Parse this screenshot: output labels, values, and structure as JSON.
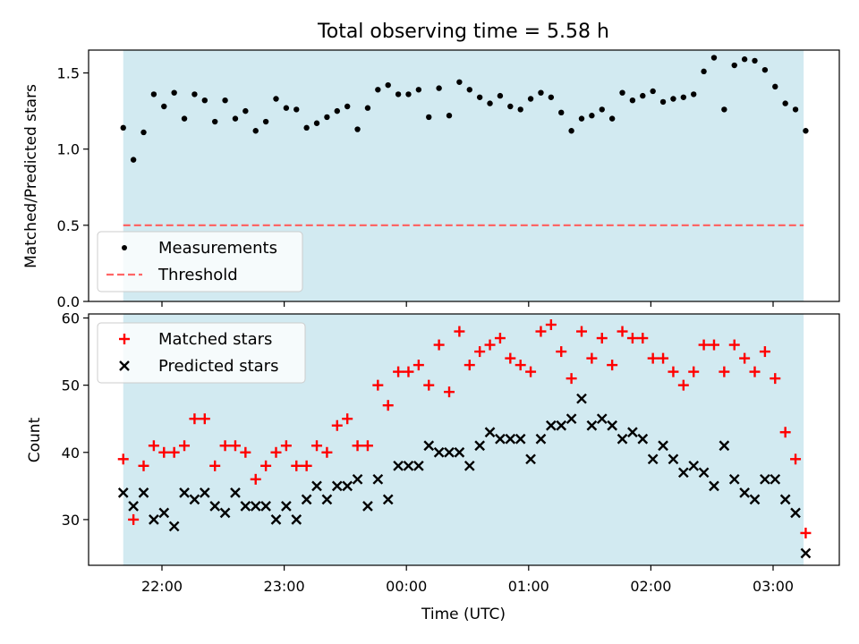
{
  "chart_data": [
    {
      "type": "scatter",
      "title": "Total observing time = 5.58 h",
      "ylabel": "Matched/Predicted stars",
      "xlabel": "",
      "ylim": [
        0.0,
        1.65
      ],
      "yticks": [
        "0.0",
        "0.5",
        "1.0",
        "1.5"
      ],
      "shaded_span": {
        "start": "21:41",
        "end": "03:15",
        "color": "#add8e6"
      },
      "legend_position": "lower-left",
      "series": [
        {
          "name": "Measurements",
          "marker": "dot",
          "color": "#000000",
          "x": [
            "21:41",
            "21:46",
            "21:51",
            "21:56",
            "22:01",
            "22:06",
            "22:11",
            "22:16",
            "22:21",
            "22:26",
            "22:31",
            "22:36",
            "22:41",
            "22:46",
            "22:51",
            "22:56",
            "23:01",
            "23:06",
            "23:11",
            "23:16",
            "23:21",
            "23:26",
            "23:31",
            "23:36",
            "23:41",
            "23:46",
            "23:51",
            "23:56",
            "00:01",
            "00:06",
            "00:11",
            "00:16",
            "00:21",
            "00:26",
            "00:31",
            "00:36",
            "00:41",
            "00:46",
            "00:51",
            "00:56",
            "01:01",
            "01:06",
            "01:11",
            "01:16",
            "01:21",
            "01:26",
            "01:31",
            "01:36",
            "01:41",
            "01:46",
            "01:51",
            "01:56",
            "02:01",
            "02:06",
            "02:11",
            "02:16",
            "02:21",
            "02:26",
            "02:31",
            "02:36",
            "02:41",
            "02:46",
            "02:51",
            "02:56",
            "03:01",
            "03:06",
            "03:11",
            "03:16"
          ],
          "values": [
            1.14,
            0.93,
            1.11,
            1.36,
            1.28,
            1.37,
            1.2,
            1.36,
            1.32,
            1.18,
            1.32,
            1.2,
            1.25,
            1.12,
            1.18,
            1.33,
            1.27,
            1.26,
            1.14,
            1.17,
            1.21,
            1.25,
            1.28,
            1.13,
            1.27,
            1.39,
            1.42,
            1.36,
            1.36,
            1.39,
            1.21,
            1.4,
            1.22,
            1.44,
            1.39,
            1.34,
            1.3,
            1.35,
            1.28,
            1.26,
            1.33,
            1.37,
            1.34,
            1.24,
            1.12,
            1.2,
            1.22,
            1.26,
            1.2,
            1.37,
            1.32,
            1.35,
            1.38,
            1.31,
            1.33,
            1.34,
            1.36,
            1.51,
            1.6,
            1.26,
            1.55,
            1.59,
            1.58,
            1.52,
            1.41,
            1.3,
            1.26,
            1.12
          ]
        },
        {
          "name": "Threshold",
          "style": "dashed-line",
          "color": "#ff6666",
          "x": [
            "21:41",
            "03:15"
          ],
          "values": [
            0.5,
            0.5
          ]
        }
      ]
    },
    {
      "type": "scatter",
      "title": "",
      "ylabel": "Count",
      "xlabel": "Time (UTC)",
      "ylim": [
        23.2,
        60.6
      ],
      "yticks": [
        "30",
        "40",
        "50",
        "60"
      ],
      "xticks": [
        "22:00",
        "23:00",
        "00:00",
        "01:00",
        "02:00",
        "03:00"
      ],
      "shaded_span": {
        "start": "21:41",
        "end": "03:15",
        "color": "#add8e6"
      },
      "legend_position": "upper-left",
      "x": [
        "21:41",
        "21:46",
        "21:51",
        "21:56",
        "22:01",
        "22:06",
        "22:11",
        "22:16",
        "22:21",
        "22:26",
        "22:31",
        "22:36",
        "22:41",
        "22:46",
        "22:51",
        "22:56",
        "23:01",
        "23:06",
        "23:11",
        "23:16",
        "23:21",
        "23:26",
        "23:31",
        "23:36",
        "23:41",
        "23:46",
        "23:51",
        "23:56",
        "00:01",
        "00:06",
        "00:11",
        "00:16",
        "00:21",
        "00:26",
        "00:31",
        "00:36",
        "00:41",
        "00:46",
        "00:51",
        "00:56",
        "01:01",
        "01:06",
        "01:11",
        "01:16",
        "01:21",
        "01:26",
        "01:31",
        "01:36",
        "01:41",
        "01:46",
        "01:51",
        "01:56",
        "02:01",
        "02:06",
        "02:11",
        "02:16",
        "02:21",
        "02:26",
        "02:31",
        "02:36",
        "02:41",
        "02:46",
        "02:51",
        "02:56",
        "03:01",
        "03:06",
        "03:11",
        "03:16"
      ],
      "series": [
        {
          "name": "Matched stars",
          "marker": "plus",
          "color": "#ff0000",
          "values": [
            39,
            30,
            38,
            41,
            40,
            40,
            41,
            45,
            45,
            38,
            41,
            41,
            40,
            36,
            38,
            40,
            41,
            38,
            38,
            41,
            40,
            44,
            45,
            41,
            41,
            50,
            47,
            52,
            52,
            53,
            50,
            56,
            49,
            58,
            53,
            55,
            56,
            57,
            54,
            53,
            52,
            58,
            59,
            55,
            51,
            58,
            54,
            57,
            53,
            58,
            57,
            57,
            54,
            54,
            52,
            50,
            52,
            56,
            56,
            52,
            56,
            54,
            52,
            55,
            51,
            43,
            39,
            28
          ]
        },
        {
          "name": "Predicted stars",
          "marker": "x",
          "color": "#000000",
          "values": [
            34,
            32,
            34,
            30,
            31,
            29,
            34,
            33,
            34,
            32,
            31,
            34,
            32,
            32,
            32,
            30,
            32,
            30,
            33,
            35,
            33,
            35,
            35,
            36,
            32,
            36,
            33,
            38,
            38,
            38,
            41,
            40,
            40,
            40,
            38,
            41,
            43,
            42,
            42,
            42,
            39,
            42,
            44,
            44,
            45,
            48,
            44,
            45,
            44,
            42,
            43,
            42,
            39,
            41,
            39,
            37,
            38,
            37,
            35,
            41,
            36,
            34,
            33,
            36,
            36,
            33,
            31,
            25
          ]
        }
      ]
    }
  ]
}
